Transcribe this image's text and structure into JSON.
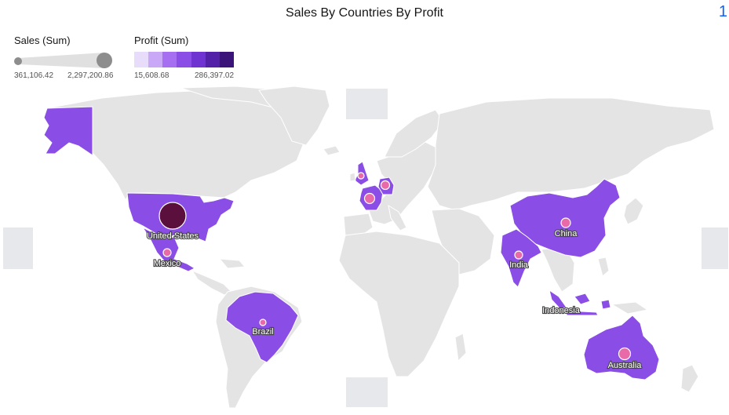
{
  "title": "Sales By Countries By Profit",
  "page_indicator": "1",
  "legend": {
    "size": {
      "label": "Sales (Sum)",
      "min": "361,106.42",
      "max": "2,297,200.86"
    },
    "color": {
      "label": "Profit (Sum)",
      "min": "15,608.68",
      "max": "286,397.02",
      "swatches": [
        "#e8dcfb",
        "#c9a8f7",
        "#a66ef0",
        "#8a4de6",
        "#6f33d1",
        "#5221a8",
        "#3a1479"
      ]
    }
  },
  "colors": {
    "land": "#e4e4e4",
    "highlight": "#8a4de6",
    "bubble_high": "#5a0f3d",
    "bubble_low": "#e86aa9"
  },
  "countries": [
    {
      "name": "United States",
      "label": "United States"
    },
    {
      "name": "Mexico",
      "label": "Mexico"
    },
    {
      "name": "Brazil",
      "label": "Brazil"
    },
    {
      "name": "China",
      "label": "China"
    },
    {
      "name": "India",
      "label": "India"
    },
    {
      "name": "Indonesia",
      "label": "Indonesia"
    },
    {
      "name": "Australia",
      "label": "Australia"
    },
    {
      "name": "United Kingdom",
      "label": ""
    },
    {
      "name": "France",
      "label": ""
    },
    {
      "name": "Germany",
      "label": ""
    }
  ]
}
